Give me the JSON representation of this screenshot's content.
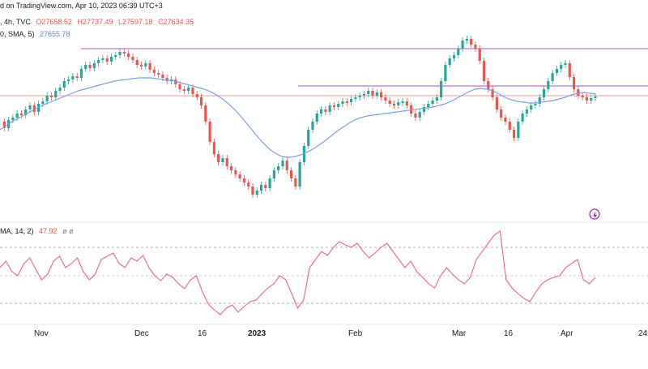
{
  "header": {
    "line1_prefix": "d on TradingView.com, Apr 10, 2023 06:39 UTC+3",
    "line2_symbol": ", 4h, TVC",
    "line2_o": "O27658.52",
    "line2_h": "H27737.49",
    "line2_l": "L27597.18",
    "line2_c": "C27634.35",
    "sma_label": "0, SMA, 5)",
    "sma_value": "27655.78",
    "rsi_label": "MA, 14, 2)",
    "rsi_value": "47.92",
    "rsi_extra": "ø ø"
  },
  "colors": {
    "up": "#26a69a",
    "down": "#ef5350",
    "sma": "#7b9fe0",
    "rsi": "#f06292",
    "hline": "#b04ad0",
    "grid": "#999999"
  },
  "x_axis": {
    "ticks": [
      "Nov",
      "Dec",
      "16",
      "2023",
      "Feb",
      "Mar",
      "16",
      "Apr",
      "24"
    ]
  },
  "chart_data": [
    {
      "type": "candlestick",
      "title": "",
      "candles": [
        [
          1,
          0
        ],
        [
          2,
          1
        ],
        [
          3,
          0
        ],
        [
          4,
          1
        ],
        [
          5,
          0
        ],
        [
          6,
          1
        ],
        [
          7,
          1
        ],
        [
          8,
          0
        ],
        [
          9,
          1
        ],
        [
          10,
          1
        ],
        [
          11,
          0
        ],
        [
          12,
          1
        ],
        [
          13,
          1
        ],
        [
          14,
          0
        ],
        [
          15,
          1
        ],
        [
          16,
          1
        ],
        [
          17,
          0
        ],
        [
          18,
          1
        ],
        [
          19,
          1
        ],
        [
          20,
          0
        ],
        [
          21,
          1
        ],
        [
          22,
          1
        ],
        [
          23,
          0
        ],
        [
          24,
          1
        ],
        [
          25,
          0
        ],
        [
          26,
          0
        ],
        [
          27,
          1
        ],
        [
          28,
          0
        ],
        [
          29,
          0
        ],
        [
          30,
          1
        ],
        [
          31,
          0
        ],
        [
          32,
          0
        ],
        [
          33,
          1
        ],
        [
          34,
          0
        ],
        [
          35,
          0
        ],
        [
          36,
          1
        ],
        [
          37,
          0
        ],
        [
          38,
          0
        ],
        [
          39,
          0
        ],
        [
          40,
          1
        ],
        [
          41,
          0
        ],
        [
          42,
          0
        ],
        [
          43,
          0
        ],
        [
          44,
          0
        ],
        [
          45,
          0
        ],
        [
          46,
          1
        ],
        [
          47,
          0
        ],
        [
          48,
          0
        ],
        [
          49,
          1
        ],
        [
          50,
          0
        ],
        [
          51,
          0
        ],
        [
          52,
          0
        ],
        [
          53,
          1
        ],
        [
          54,
          0
        ],
        [
          55,
          0
        ],
        [
          56,
          1
        ],
        [
          57,
          1
        ],
        [
          58,
          0
        ],
        [
          59,
          1
        ],
        [
          60,
          1
        ],
        [
          61,
          0
        ],
        [
          62,
          1
        ],
        [
          63,
          1
        ],
        [
          64,
          1
        ],
        [
          65,
          0
        ],
        [
          66,
          1
        ],
        [
          67,
          1
        ],
        [
          68,
          0
        ],
        [
          69,
          1
        ],
        [
          70,
          0
        ],
        [
          71,
          1
        ],
        [
          72,
          1
        ],
        [
          73,
          0
        ],
        [
          74,
          1
        ],
        [
          75,
          0
        ],
        [
          76,
          1
        ],
        [
          77,
          1
        ],
        [
          78,
          0
        ],
        [
          79,
          1
        ],
        [
          80,
          0
        ],
        [
          81,
          1
        ],
        [
          82,
          0
        ],
        [
          83,
          1
        ],
        [
          84,
          0
        ],
        [
          85,
          1
        ],
        [
          86,
          1
        ],
        [
          87,
          0
        ],
        [
          88,
          1
        ],
        [
          89,
          1
        ],
        [
          90,
          0
        ],
        [
          91,
          1
        ],
        [
          92,
          1
        ],
        [
          93,
          0
        ],
        [
          94,
          0
        ],
        [
          95,
          1
        ],
        [
          96,
          0
        ],
        [
          97,
          1
        ],
        [
          98,
          1
        ],
        [
          99,
          0
        ],
        [
          100,
          1
        ],
        [
          101,
          0
        ],
        [
          102,
          1
        ],
        [
          103,
          1
        ],
        [
          104,
          0
        ]
      ],
      "close_path": [
        150,
        158,
        148,
        145,
        140,
        142,
        135,
        130,
        138,
        128,
        125,
        118,
        120,
        112,
        108,
        100,
        98,
        94,
        96,
        85,
        80,
        84,
        78,
        74,
        72,
        76,
        70,
        68,
        64,
        66,
        70,
        74,
        80,
        82,
        78,
        86,
        90,
        92,
        96,
        100,
        98,
        104,
        110,
        112,
        108,
        116,
        120,
        130,
        150,
        175,
        190,
        200,
        195,
        205,
        210,
        215,
        220,
        225,
        230,
        240,
        235,
        228,
        232,
        220,
        210,
        205,
        198,
        210,
        220,
        230,
        200,
        180,
        160,
        150,
        140,
        135,
        138,
        130,
        132,
        128,
        125,
        126,
        122,
        120,
        118,
        116,
        112,
        118,
        114,
        120,
        124,
        128,
        130,
        126,
        125,
        130,
        140,
        145,
        138,
        132,
        128,
        124,
        120,
        100,
        80,
        72,
        68,
        60,
        50,
        48,
        55,
        60,
        75,
        100,
        110,
        120,
        135,
        145,
        150,
        160,
        170,
        150,
        140,
        135,
        130,
        128,
        120,
        110,
        100,
        90,
        85,
        80,
        78,
        95,
        110,
        118,
        120,
        124,
        121,
        119
      ],
      "sma_path": [
        160,
        155,
        150,
        146,
        142,
        138,
        134,
        130,
        127,
        124,
        121,
        118,
        115,
        112,
        110,
        108,
        106,
        104,
        102,
        100,
        99,
        98,
        97,
        96,
        96,
        96,
        97,
        98,
        99,
        100,
        102,
        104,
        106,
        108,
        110,
        113,
        117,
        122,
        128,
        135,
        143,
        152,
        161,
        170,
        178,
        185,
        190,
        193,
        194,
        193,
        191,
        188,
        184,
        179,
        174,
        168,
        162,
        157,
        152,
        148,
        145,
        143,
        142,
        141,
        140,
        139,
        138,
        137,
        136,
        135,
        134,
        133,
        132,
        130,
        128,
        125,
        121,
        117,
        113,
        110,
        109,
        110,
        112,
        116,
        120,
        123,
        125,
        126,
        127,
        127,
        126,
        125,
        124,
        122,
        120,
        117,
        115,
        114,
        115,
        116
      ],
      "rsi_path": [
        330,
        322,
        335,
        340,
        325,
        318,
        332,
        345,
        338,
        322,
        316,
        330,
        325,
        318,
        335,
        345,
        338,
        320,
        316,
        312,
        325,
        330,
        318,
        322,
        315,
        330,
        340,
        346,
        338,
        342,
        350,
        356,
        345,
        340,
        360,
        375,
        382,
        388,
        380,
        376,
        385,
        378,
        372,
        370,
        362,
        355,
        350,
        340,
        345,
        362,
        380,
        370,
        330,
        320,
        310,
        315,
        305,
        298,
        302,
        305,
        300,
        310,
        318,
        312,
        305,
        300,
        310,
        320,
        330,
        322,
        335,
        342,
        350,
        355,
        340,
        330,
        338,
        345,
        350,
        342,
        320,
        310,
        300,
        290,
        285,
        345,
        355,
        362,
        368,
        372,
        360,
        350,
        345,
        342,
        340,
        330,
        325,
        320,
        345,
        350,
        342
      ]
    }
  ]
}
